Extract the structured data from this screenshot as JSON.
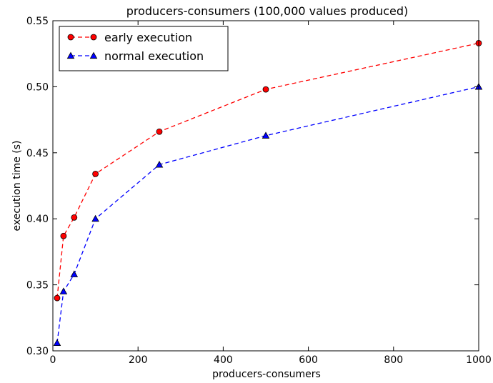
{
  "chart_data": {
    "type": "line",
    "title": "producers-consumers (100,000 values produced)",
    "xlabel": "producers-consumers",
    "ylabel": "execution time (s)",
    "xlim": [
      0,
      1000
    ],
    "ylim": [
      0.3,
      0.55
    ],
    "xticks": [
      0,
      200,
      400,
      600,
      800,
      1000
    ],
    "xtick_labels": [
      "0",
      "200",
      "400",
      "600",
      "800",
      "1000"
    ],
    "yticks": [
      0.3,
      0.35,
      0.4,
      0.45,
      0.5,
      0.55
    ],
    "ytick_labels": [
      "0.30",
      "0.35",
      "0.40",
      "0.45",
      "0.50",
      "0.55"
    ],
    "grid": false,
    "legend_position": "top-left",
    "series": [
      {
        "name": "early execution",
        "color": "#ff0000",
        "marker": "circle",
        "line_style": "dashed",
        "x": [
          10,
          25,
          50,
          100,
          250,
          500,
          1000
        ],
        "y": [
          0.34,
          0.387,
          0.401,
          0.434,
          0.466,
          0.498,
          0.533
        ]
      },
      {
        "name": "normal execution",
        "color": "#0000ff",
        "marker": "triangle",
        "line_style": "dashed",
        "x": [
          10,
          25,
          50,
          100,
          250,
          500,
          1000
        ],
        "y": [
          0.306,
          0.345,
          0.358,
          0.4,
          0.441,
          0.463,
          0.5
        ]
      }
    ]
  }
}
